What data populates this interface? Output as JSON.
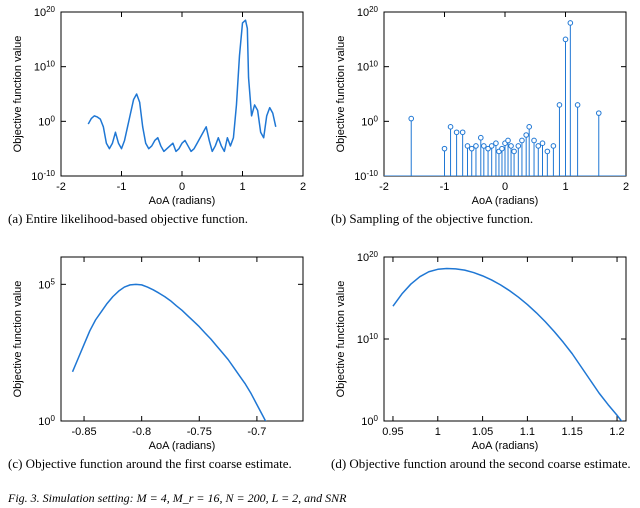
{
  "global": {
    "series_color": "#1f77d4",
    "axis_color": "#000000",
    "background_color": "#ffffff",
    "line_width": 1.5,
    "font_family_axis": "Arial",
    "tick_fontsize": 11,
    "axis_label_fontsize": 11,
    "caption_fontsize": 13
  },
  "footer": "Fig. 3.  Simulation setting: M = 4, M_r = 16, N = 200, L = 2, and SNR",
  "panels": {
    "a": {
      "type": "line",
      "xlabel": "AoA (radians)",
      "ylabel": "Objective function value",
      "caption": "(a) Entire likelihood-based objective function.",
      "xlim": [
        -2,
        2
      ],
      "xtick_step": 1,
      "yscale": "log",
      "ylim_exp": [
        -10,
        20
      ],
      "ytick_exp_step": 10,
      "data": {
        "x": [
          -1.55,
          -1.5,
          -1.45,
          -1.4,
          -1.35,
          -1.3,
          -1.25,
          -1.2,
          -1.15,
          -1.1,
          -1.05,
          -1.0,
          -0.95,
          -0.9,
          -0.85,
          -0.8,
          -0.75,
          -0.7,
          -0.65,
          -0.6,
          -0.55,
          -0.5,
          -0.45,
          -0.4,
          -0.35,
          -0.3,
          -0.25,
          -0.2,
          -0.15,
          -0.1,
          -0.05,
          0.0,
          0.05,
          0.1,
          0.15,
          0.2,
          0.25,
          0.3,
          0.35,
          0.4,
          0.45,
          0.5,
          0.55,
          0.6,
          0.65,
          0.7,
          0.75,
          0.8,
          0.85,
          0.9,
          0.95,
          1.0,
          1.05,
          1.08,
          1.1,
          1.15,
          1.2,
          1.25,
          1.3,
          1.35,
          1.4,
          1.45,
          1.5,
          1.55
        ],
        "y_exp": [
          -0.5,
          0.5,
          1.0,
          0.8,
          0.4,
          -1.0,
          -4.0,
          -5.0,
          -4.0,
          -2.0,
          -4.0,
          -5.0,
          -3.5,
          -1.0,
          1.5,
          4.0,
          5.0,
          3.5,
          -1.0,
          -4.0,
          -5.0,
          -4.5,
          -3.5,
          -3.0,
          -4.5,
          -5.5,
          -5.0,
          -4.5,
          -4.0,
          -5.5,
          -5.0,
          -4.0,
          -3.5,
          -4.5,
          -5.5,
          -5.0,
          -4.0,
          -3.0,
          -2.0,
          -1.0,
          -3.5,
          -5.5,
          -4.5,
          -3.0,
          -4.5,
          -5.5,
          -3.0,
          -4.5,
          -3.0,
          3.0,
          12.0,
          18.0,
          18.5,
          17.0,
          8.0,
          1.0,
          3.0,
          2.0,
          -2.0,
          -3.0,
          1.0,
          2.5,
          1.5,
          -1.0
        ]
      }
    },
    "b": {
      "type": "stem",
      "xlabel": "AoA (radians)",
      "ylabel": "Objective function value",
      "caption": "(b) Sampling of the objective function.",
      "xlim": [
        -2,
        2
      ],
      "xtick_step": 1,
      "yscale": "log",
      "ylim_exp": [
        -10,
        20
      ],
      "ytick_exp_step": 10,
      "marker_radius": 2.3,
      "data": {
        "x": [
          -1.55,
          -1.0,
          -0.9,
          -0.8,
          -0.7,
          -0.62,
          -0.55,
          -0.48,
          -0.4,
          -0.35,
          -0.28,
          -0.22,
          -0.15,
          -0.1,
          -0.05,
          0.0,
          0.05,
          0.1,
          0.15,
          0.22,
          0.28,
          0.35,
          0.4,
          0.48,
          0.55,
          0.62,
          0.7,
          0.8,
          0.9,
          1.0,
          1.08,
          1.2,
          1.55
        ],
        "y_exp": [
          0.5,
          -5.0,
          -1.0,
          -2.0,
          -2.0,
          -4.5,
          -5.0,
          -4.5,
          -3.0,
          -4.5,
          -5.0,
          -4.5,
          -4.0,
          -5.5,
          -5.0,
          -4.0,
          -3.5,
          -4.5,
          -5.5,
          -4.5,
          -3.5,
          -2.5,
          -1.0,
          -3.5,
          -4.5,
          -4.0,
          -5.5,
          -4.5,
          3.0,
          15.0,
          18.0,
          3.0,
          1.5
        ]
      }
    },
    "c": {
      "type": "line",
      "xlabel": "AoA (radians)",
      "ylabel": "Objective function value",
      "caption": "(c) Objective function around the first coarse estimate.",
      "xlim": [
        -0.87,
        -0.66
      ],
      "xticks": [
        -0.85,
        -0.8,
        -0.75,
        -0.7
      ],
      "yscale": "log",
      "ylim_exp": [
        0,
        6
      ],
      "ytick_exp_step": 5,
      "yticks_exp": [
        0,
        5
      ],
      "data": {
        "x": [
          -0.86,
          -0.855,
          -0.85,
          -0.845,
          -0.84,
          -0.835,
          -0.83,
          -0.825,
          -0.82,
          -0.815,
          -0.81,
          -0.805,
          -0.8,
          -0.795,
          -0.79,
          -0.785,
          -0.78,
          -0.775,
          -0.77,
          -0.765,
          -0.76,
          -0.755,
          -0.75,
          -0.745,
          -0.74,
          -0.735,
          -0.73,
          -0.725,
          -0.72,
          -0.715,
          -0.71,
          -0.705,
          -0.7,
          -0.695,
          -0.69,
          -0.685,
          -0.68,
          -0.675,
          -0.67,
          -0.665
        ],
        "y_exp": [
          1.8,
          2.3,
          2.8,
          3.3,
          3.7,
          4.0,
          4.3,
          4.55,
          4.75,
          4.9,
          4.98,
          5.0,
          4.98,
          4.9,
          4.8,
          4.68,
          4.55,
          4.4,
          4.22,
          4.05,
          3.85,
          3.65,
          3.45,
          3.22,
          3.0,
          2.75,
          2.5,
          2.25,
          1.95,
          1.65,
          1.35,
          1.0,
          0.6,
          0.2,
          -0.2,
          -0.65,
          -1.1,
          -1.6,
          -2.1,
          -2.6
        ]
      }
    },
    "d": {
      "type": "line",
      "xlabel": "AoA (radians)",
      "ylabel": "Objective function value",
      "caption": "(d) Objective function around the second coarse estimate.",
      "xlim": [
        0.94,
        1.21
      ],
      "xticks": [
        0.95,
        1,
        1.05,
        1.1,
        1.15,
        1.2
      ],
      "yscale": "log",
      "ylim_exp": [
        0,
        20
      ],
      "ytick_exp_step": 10,
      "data": {
        "x": [
          0.95,
          0.96,
          0.97,
          0.98,
          0.99,
          1.0,
          1.01,
          1.02,
          1.03,
          1.04,
          1.05,
          1.06,
          1.07,
          1.08,
          1.09,
          1.1,
          1.11,
          1.12,
          1.13,
          1.14,
          1.15,
          1.16,
          1.17,
          1.18,
          1.19,
          1.2,
          1.21
        ],
        "y_exp": [
          14.0,
          15.5,
          16.7,
          17.6,
          18.2,
          18.5,
          18.6,
          18.55,
          18.4,
          18.1,
          17.7,
          17.2,
          16.6,
          15.9,
          15.1,
          14.2,
          13.2,
          12.1,
          10.9,
          9.6,
          8.2,
          6.6,
          5.0,
          3.4,
          2.0,
          0.7,
          -0.7
        ]
      }
    }
  }
}
